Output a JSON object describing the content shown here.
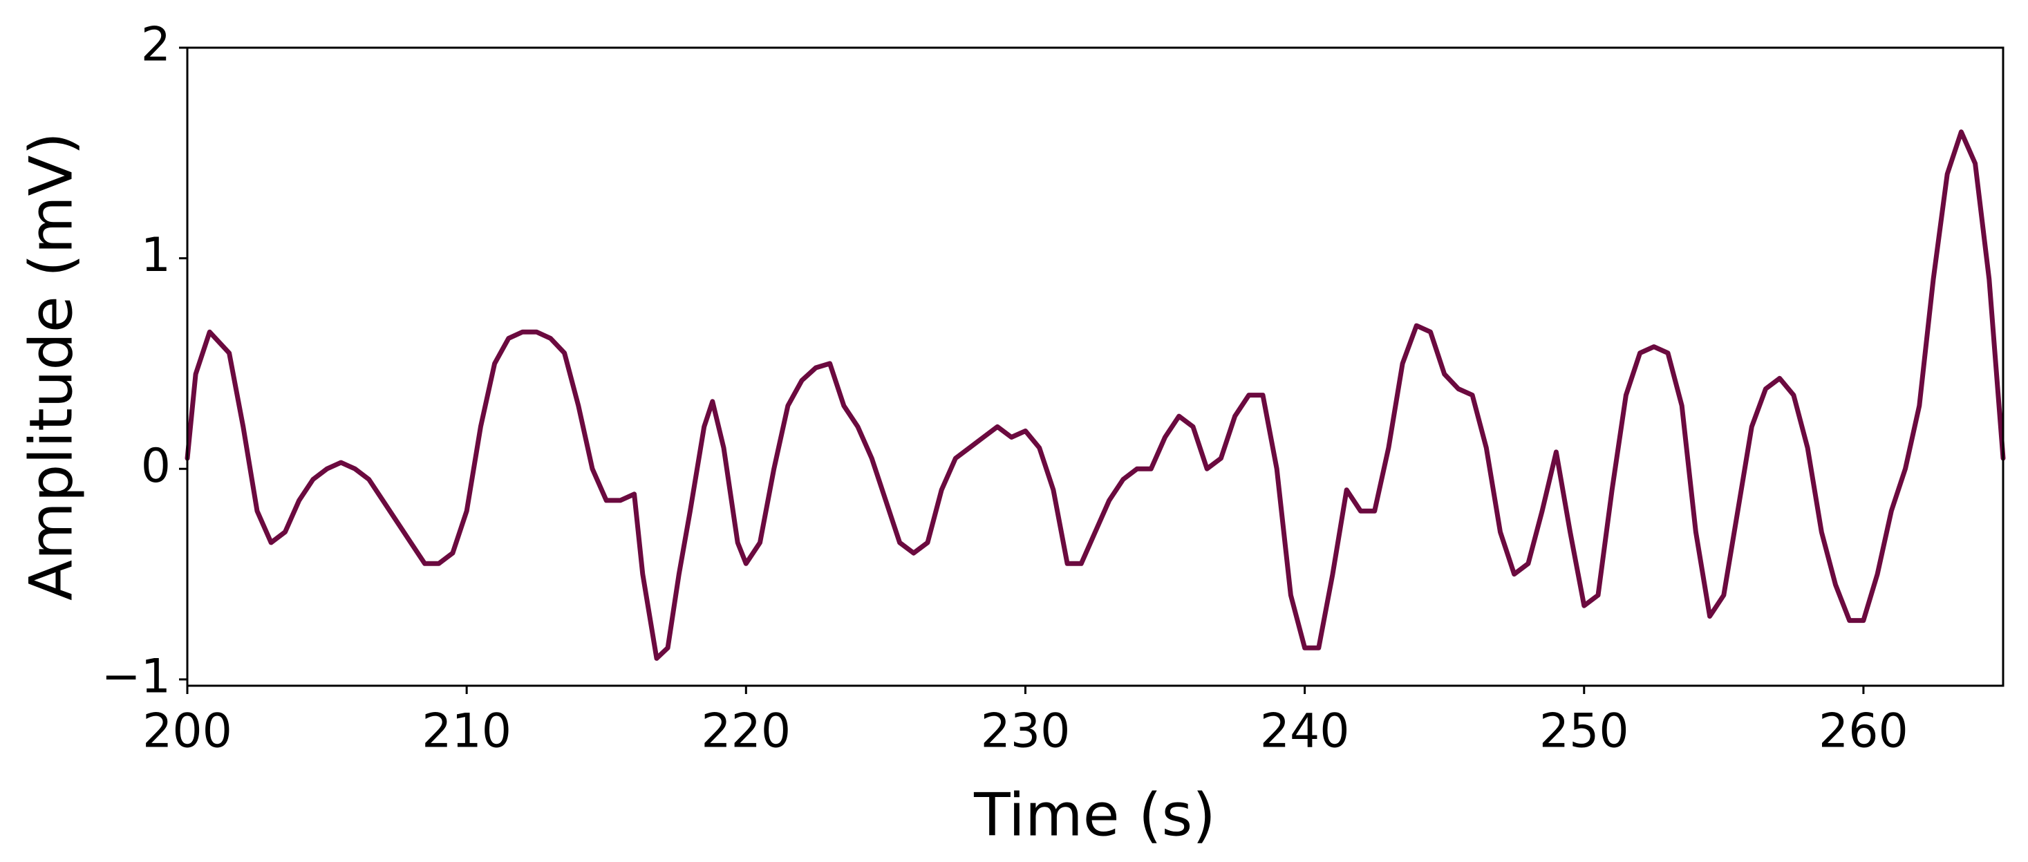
{
  "chart_data": {
    "type": "line",
    "x_label": "Time (s)",
    "y_label": "Amplitude (mV)",
    "xlim": [
      200,
      265
    ],
    "xticks": [
      200,
      210,
      220,
      230,
      240,
      250,
      260
    ],
    "ylim": [
      -1.03,
      2
    ],
    "yticks": [
      {
        "value": -1,
        "label": "−1"
      },
      0,
      1,
      2
    ],
    "grid": false,
    "series": [
      {
        "color": "#6b0a3f",
        "x": [
          200,
          200.3,
          200.8,
          201.5,
          202,
          202.5,
          203,
          203.5,
          204,
          204.5,
          205,
          205.5,
          206,
          206.5,
          207,
          207.5,
          208,
          208.5,
          209,
          209.5,
          210,
          210.5,
          211,
          211.5,
          212,
          212.5,
          213,
          213.5,
          214,
          214.5,
          215,
          215.5,
          216,
          216.3,
          216.8,
          217.2,
          217.6,
          218,
          218.5,
          218.8,
          219.2,
          219.7,
          220,
          220.5,
          221,
          221.5,
          222,
          222.5,
          223,
          223.5,
          224,
          224.5,
          225,
          225.5,
          226,
          226.5,
          227,
          227.5,
          228,
          228.5,
          229,
          229.5,
          230,
          230.5,
          231,
          231.5,
          232,
          232.5,
          233,
          233.5,
          234,
          234.5,
          235,
          235.5,
          236,
          236.5,
          237,
          237.5,
          238,
          238.5,
          239,
          239.5,
          240,
          240.5,
          241,
          241.5,
          242,
          242.5,
          243,
          243.5,
          244,
          244.5,
          245,
          245.5,
          246,
          246.5,
          247,
          247.5,
          248,
          248.5,
          249,
          249.5,
          250,
          250.5,
          251,
          251.5,
          252,
          252.5,
          253,
          253.5,
          254,
          254.5,
          255,
          255.5,
          256,
          256.5,
          257,
          257.5,
          258,
          258.5,
          259,
          259.5,
          260,
          260.5,
          261,
          261.5,
          262,
          262.5,
          263,
          263.5,
          264,
          264.5,
          265
        ],
        "values": [
          0.05,
          0.45,
          0.65,
          0.55,
          0.2,
          -0.2,
          -0.35,
          -0.3,
          -0.15,
          -0.05,
          0.0,
          0.03,
          0.0,
          -0.05,
          -0.15,
          -0.25,
          -0.35,
          -0.45,
          -0.45,
          -0.4,
          -0.2,
          0.2,
          0.5,
          0.62,
          0.65,
          0.65,
          0.62,
          0.55,
          0.3,
          0.0,
          -0.15,
          -0.15,
          -0.12,
          -0.5,
          -0.9,
          -0.85,
          -0.5,
          -0.2,
          0.2,
          0.32,
          0.1,
          -0.35,
          -0.45,
          -0.35,
          0.0,
          0.3,
          0.42,
          0.48,
          0.5,
          0.3,
          0.2,
          0.05,
          -0.15,
          -0.35,
          -0.4,
          -0.35,
          -0.1,
          0.05,
          0.1,
          0.15,
          0.2,
          0.15,
          0.18,
          0.1,
          -0.1,
          -0.45,
          -0.45,
          -0.3,
          -0.15,
          -0.05,
          0.0,
          0.0,
          0.15,
          0.25,
          0.2,
          0.0,
          0.05,
          0.25,
          0.35,
          0.35,
          0.0,
          -0.6,
          -0.85,
          -0.85,
          -0.5,
          -0.1,
          -0.2,
          -0.2,
          0.1,
          0.5,
          0.68,
          0.65,
          0.45,
          0.38,
          0.35,
          0.1,
          -0.3,
          -0.5,
          -0.45,
          -0.2,
          0.08,
          -0.3,
          -0.65,
          -0.6,
          -0.1,
          0.35,
          0.55,
          0.58,
          0.55,
          0.3,
          -0.3,
          -0.7,
          -0.6,
          -0.2,
          0.2,
          0.38,
          0.43,
          0.35,
          0.1,
          -0.3,
          -0.55,
          -0.72,
          -0.72,
          -0.5,
          -0.2,
          0.0,
          0.3,
          0.9,
          1.4,
          1.6,
          1.45,
          0.9,
          0.05
        ]
      }
    ]
  }
}
